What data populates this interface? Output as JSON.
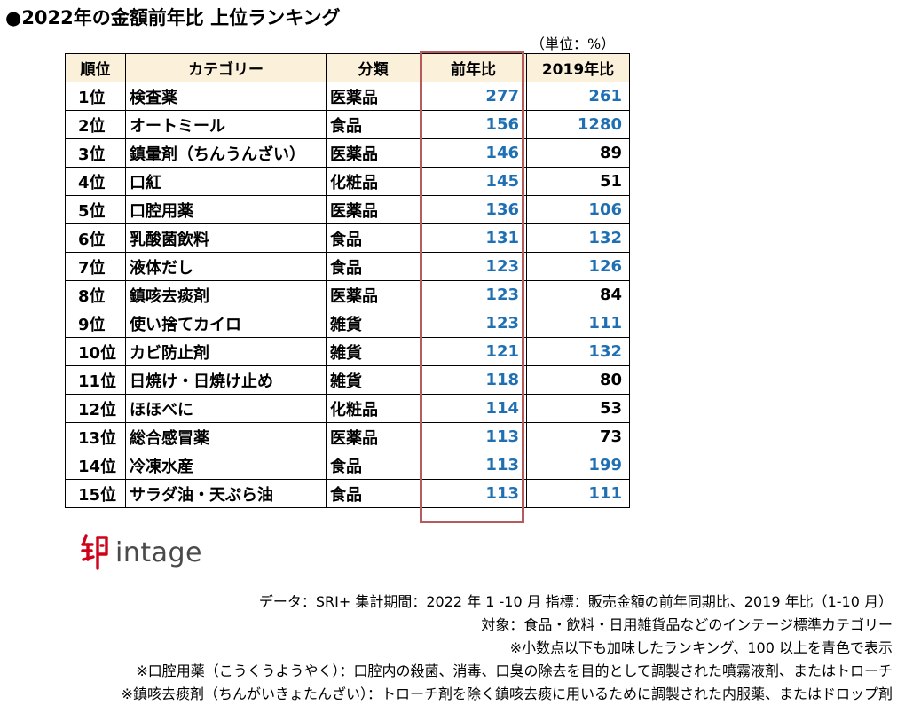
{
  "title": "●2022年の金額前年比 上位ランキング",
  "unit": "（単位：%）",
  "table": {
    "headers": [
      "順位",
      "カテゴリー",
      "分類",
      "前年比",
      "2019年比"
    ],
    "rows": [
      {
        "rank": "1位",
        "category": "検査薬",
        "class": "医薬品",
        "yoy": "277",
        "vs2019": "261"
      },
      {
        "rank": "2位",
        "category": "オートミール",
        "class": "食品",
        "yoy": "156",
        "vs2019": "1280"
      },
      {
        "rank": "3位",
        "category": "鎮暈剤（ちんうんざい）",
        "class": "医薬品",
        "yoy": "146",
        "vs2019": "89"
      },
      {
        "rank": "4位",
        "category": "口紅",
        "class": "化粧品",
        "yoy": "145",
        "vs2019": "51"
      },
      {
        "rank": "5位",
        "category": "口腔用薬",
        "class": "医薬品",
        "yoy": "136",
        "vs2019": "106"
      },
      {
        "rank": "6位",
        "category": "乳酸菌飲料",
        "class": "食品",
        "yoy": "131",
        "vs2019": "132"
      },
      {
        "rank": "7位",
        "category": "液体だし",
        "class": "食品",
        "yoy": "123",
        "vs2019": "126"
      },
      {
        "rank": "8位",
        "category": "鎮咳去痰剤",
        "class": "医薬品",
        "yoy": "123",
        "vs2019": "84"
      },
      {
        "rank": "9位",
        "category": "使い捨てカイロ",
        "class": "雑貨",
        "yoy": "123",
        "vs2019": "111"
      },
      {
        "rank": "10位",
        "category": "カビ防止剤",
        "class": "雑貨",
        "yoy": "121",
        "vs2019": "132"
      },
      {
        "rank": "11位",
        "category": "日焼け・日焼け止め",
        "class": "雑貨",
        "yoy": "118",
        "vs2019": "80"
      },
      {
        "rank": "12位",
        "category": "ほほべに",
        "class": "化粧品",
        "yoy": "114",
        "vs2019": "53"
      },
      {
        "rank": "13位",
        "category": "総合感冒薬",
        "class": "医薬品",
        "yoy": "113",
        "vs2019": "73"
      },
      {
        "rank": "14位",
        "category": "冷凍水産",
        "class": "食品",
        "yoy": "113",
        "vs2019": "199"
      },
      {
        "rank": "15位",
        "category": "サラダ油・天ぷら油",
        "class": "食品",
        "yoy": "113",
        "vs2019": "111"
      }
    ]
  },
  "logo": {
    "text": "intage"
  },
  "notes": [
    "データ：SRI+ 集計期間：2022 年 1 -10 月 指標：販売金額の前年同期比、2019 年比（1-10 月）",
    "対象：食品・飲料・日用雑貨品などのインテージ標準カテゴリー",
    "※小数点以下も加味したランキング、100 以上を青色で表示",
    "※口腔用薬（こうくうようやく）：口腔内の殺菌、消毒、口臭の除去を目的として調製された噴霧液剤、またはトローチ",
    "※鎮咳去痰剤（ちんがいきょたんざい）：トローチ剤を除く鎮咳去痰に用いるために調製された内服薬、またはドロップ剤"
  ],
  "colors": {
    "above_100": "#1f6fb3",
    "below_100": "#000000",
    "header_bg": "#fbf1da",
    "highlight_border": "#b65b5b",
    "logo_red": "#d0021b"
  }
}
